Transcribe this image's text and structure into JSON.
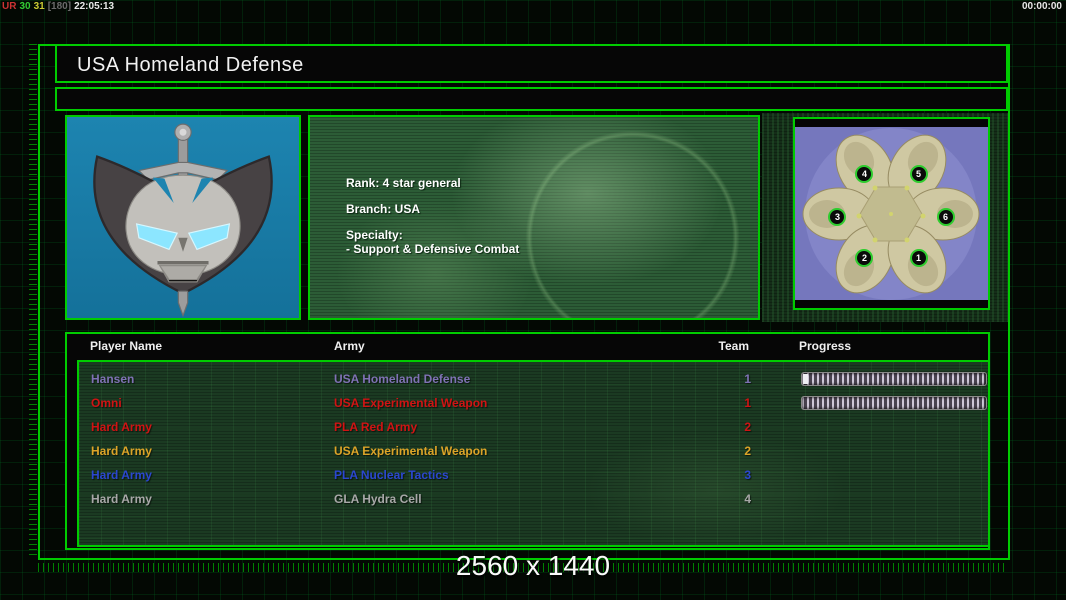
{
  "status_bar": {
    "left_tokens": [
      {
        "text": "UR",
        "color": "#cc3333"
      },
      {
        "text": "30",
        "color": "#33cc33"
      },
      {
        "text": "31",
        "color": "#cccc33"
      },
      {
        "text": "[180]",
        "color": "#6a6a6a"
      },
      {
        "text": "22:05:13",
        "color": "#e8e8e8"
      }
    ],
    "right_timer": "00:00:00"
  },
  "title_bar": {
    "map_name": "USA Homeland Defense"
  },
  "general_panel": {
    "rank_line": "Rank: 4 star general",
    "branch_line": "Branch: USA",
    "specialty_label": "Specialty:",
    "specialty_line": "- Support & Defensive Combat"
  },
  "map_preview": {
    "markers": [
      {
        "num": "4",
        "x": 36,
        "y": 27
      },
      {
        "num": "5",
        "x": 64,
        "y": 27
      },
      {
        "num": "3",
        "x": 22,
        "y": 52
      },
      {
        "num": "6",
        "x": 78,
        "y": 52
      },
      {
        "num": "2",
        "x": 36,
        "y": 76
      },
      {
        "num": "1",
        "x": 64,
        "y": 76
      }
    ]
  },
  "player_table": {
    "headers": {
      "name": "Player Name",
      "army": "Army",
      "team": "Team",
      "progress": "Progress"
    },
    "rows": [
      {
        "name": "Hansen",
        "army": "USA Homeland Defense",
        "team": "1",
        "color": "#7f72b4",
        "has_progress": true,
        "has_cap": true
      },
      {
        "name": "Omni",
        "army": "USA Experimental Weapon",
        "team": "1",
        "color": "#d01414",
        "has_progress": true,
        "has_cap": false
      },
      {
        "name": "Hard Army",
        "army": "PLA Red Army",
        "team": "2",
        "color": "#d01414",
        "has_progress": false,
        "has_cap": false
      },
      {
        "name": "Hard Army",
        "army": "USA Experimental Weapon",
        "team": "2",
        "color": "#dca428",
        "has_progress": false,
        "has_cap": false
      },
      {
        "name": "Hard Army",
        "army": "PLA Nuclear Tactics",
        "team": "3",
        "color": "#2b47cf",
        "has_progress": false,
        "has_cap": false
      },
      {
        "name": "Hard Army",
        "army": "GLA Hydra Cell",
        "team": "4",
        "color": "#a8a8a8",
        "has_progress": false,
        "has_cap": false
      }
    ]
  },
  "footer": {
    "resolution_label": "2560 x 1440"
  },
  "theme": {
    "frame_green": "#00cc00",
    "marker_ring": "#2ecc2e",
    "emblem_bg": "#1d84b0"
  }
}
